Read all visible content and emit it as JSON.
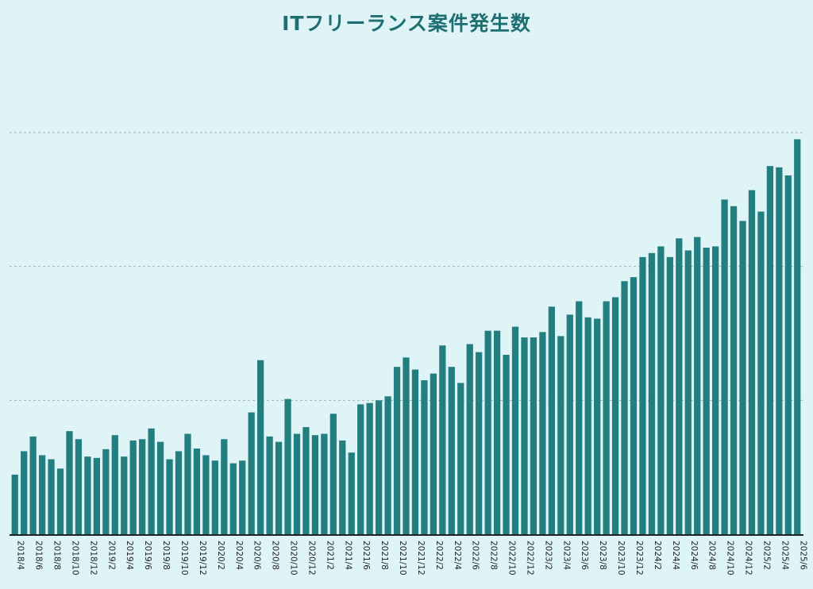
{
  "chart_data": {
    "type": "bar",
    "title": "ITフリーランス案件発生数",
    "xlabel": "",
    "ylabel": "",
    "ylim": [
      0,
      300
    ],
    "grid": true,
    "y_units_note": "relative (no y-axis labels shown; gridlines at 100, 200, 300)",
    "bar_color": "#237e80",
    "categories": [
      "2018/4",
      "2018/5",
      "2018/6",
      "2018/7",
      "2018/8",
      "2018/9",
      "2018/10",
      "2018/11",
      "2018/12",
      "2019/1",
      "2019/2",
      "2019/3",
      "2019/4",
      "2019/5",
      "2019/6",
      "2019/7",
      "2019/8",
      "2019/9",
      "2019/10",
      "2019/11",
      "2019/12",
      "2020/1",
      "2020/2",
      "2020/3",
      "2020/4",
      "2020/5",
      "2020/6",
      "2020/7",
      "2020/8",
      "2020/9",
      "2020/10",
      "2020/11",
      "2020/12",
      "2021/1",
      "2021/2",
      "2021/3",
      "2021/4",
      "2021/5",
      "2021/6",
      "2021/7",
      "2021/8",
      "2021/9",
      "2021/10",
      "2021/11",
      "2021/12",
      "2022/1",
      "2022/2",
      "2022/3",
      "2022/4",
      "2022/5",
      "2022/6",
      "2022/7",
      "2022/8",
      "2022/9",
      "2022/10",
      "2022/11",
      "2022/12",
      "2023/1",
      "2023/2",
      "2023/3",
      "2023/4",
      "2023/5",
      "2023/6",
      "2023/7",
      "2023/8",
      "2023/9",
      "2023/10",
      "2023/11",
      "2023/12",
      "2024/1",
      "2024/2",
      "2024/3",
      "2024/4",
      "2024/5",
      "2024/6",
      "2024/7",
      "2024/8",
      "2024/9",
      "2024/10",
      "2024/11",
      "2024/12",
      "2025/1",
      "2025/2",
      "2025/3",
      "2025/4",
      "2025/5",
      "2025/6"
    ],
    "values": [
      44.5,
      62,
      73,
      59,
      56,
      49,
      77,
      71,
      58,
      57,
      63.5,
      74,
      58,
      70,
      71,
      79,
      69,
      56,
      62,
      75,
      64,
      59,
      55,
      71,
      53,
      55,
      91,
      130,
      73,
      69,
      101,
      75,
      80,
      74,
      75,
      90,
      70,
      61,
      97,
      98,
      100,
      103,
      125,
      132,
      123,
      115,
      120,
      141,
      125,
      113,
      142,
      136,
      152,
      152,
      134,
      155,
      147,
      147,
      151,
      170,
      148,
      164,
      174,
      162,
      161,
      174,
      177,
      189,
      192,
      207,
      210,
      215,
      207,
      221,
      212,
      222,
      214,
      215,
      250,
      245,
      234,
      257,
      241,
      275,
      274,
      268,
      295
    ],
    "tick_labels": [
      "2018/4",
      "2018/6",
      "2018/8",
      "2018/10",
      "2018/12",
      "2019/2",
      "2019/4",
      "2019/6",
      "2019/8",
      "2019/10",
      "2019/12",
      "2020/2",
      "2020/4",
      "2020/6",
      "2020/8",
      "2020/10",
      "2020/12",
      "2021/2",
      "2021/4",
      "2021/6",
      "2021/8",
      "2021/10",
      "2021/12",
      "2022/2",
      "2022/4",
      "2022/6",
      "2022/8",
      "2022/10",
      "2022/12",
      "2023/2",
      "2023/4",
      "2023/6",
      "2023/8",
      "2023/10",
      "2023/12",
      "2024/2",
      "2024/4",
      "2024/6",
      "2024/8",
      "2024/10",
      "2024/12",
      "2025/2",
      "2025/4",
      "2025/6"
    ]
  }
}
